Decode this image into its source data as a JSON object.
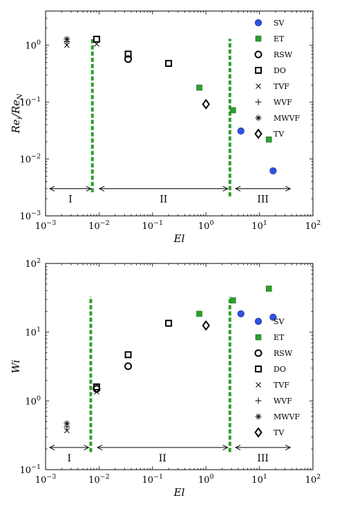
{
  "chart_data": [
    {
      "type": "scatter",
      "xlabel": "El",
      "ylabel": "Re_i/Re_N",
      "xscale": "log",
      "yscale": "log",
      "xlim": [
        0.001,
        100
      ],
      "ylim": [
        0.001,
        4
      ],
      "xticks": [
        {
          "value": 0.001,
          "base": "10",
          "exp": "−3"
        },
        {
          "value": 0.01,
          "base": "10",
          "exp": "−2"
        },
        {
          "value": 0.1,
          "base": "10",
          "exp": "−1"
        },
        {
          "value": 1,
          "base": "10",
          "exp": "0"
        },
        {
          "value": 10,
          "base": "10",
          "exp": "1"
        },
        {
          "value": 100,
          "base": "10",
          "exp": "2"
        }
      ],
      "yticks": [
        {
          "value": 0.001,
          "base": "10",
          "exp": "−3"
        },
        {
          "value": 0.01,
          "base": "10",
          "exp": "−2"
        },
        {
          "value": 0.1,
          "base": "10",
          "exp": "−1"
        },
        {
          "value": 1,
          "base": "10",
          "exp": "0"
        }
      ],
      "legend_position": "right",
      "series": [
        {
          "name": "SV",
          "marker": "filled-circle",
          "color": "#2f52e0",
          "points": [
            [
              4.5,
              0.031
            ],
            [
              18,
              0.0062
            ]
          ]
        },
        {
          "name": "ET",
          "marker": "filled-square",
          "color": "#2ca02c",
          "points": [
            [
              0.75,
              0.18
            ],
            [
              3.2,
              0.072
            ],
            [
              15,
              0.022
            ]
          ]
        },
        {
          "name": "RSW",
          "marker": "open-circle",
          "color": "#000000",
          "points": [
            [
              0.035,
              0.57
            ]
          ]
        },
        {
          "name": "DO",
          "marker": "open-square",
          "color": "#000000",
          "points": [
            [
              0.009,
              1.28
            ],
            [
              0.035,
              0.7
            ],
            [
              0.2,
              0.48
            ]
          ]
        },
        {
          "name": "TVF",
          "marker": "x",
          "color": "#000000",
          "points": [
            [
              0.0025,
              1.0
            ],
            [
              0.009,
              1.05
            ]
          ]
        },
        {
          "name": "WVF",
          "marker": "plus",
          "color": "#000000",
          "points": [
            [
              0.0025,
              1.15
            ]
          ]
        },
        {
          "name": "MWVF",
          "marker": "asterisk",
          "color": "#000000",
          "points": [
            [
              0.0025,
              1.28
            ]
          ]
        },
        {
          "name": "TV",
          "marker": "open-diamond",
          "color": "#000000",
          "points": [
            [
              1.0,
              0.092
            ]
          ]
        }
      ],
      "boundaries": {
        "color": "#2ca02c",
        "x": [
          0.0075,
          2.8
        ],
        "y_range": [
          [
            0.0026,
            1.4
          ],
          [
            0.0022,
            1.3
          ]
        ]
      },
      "regions": [
        {
          "label": "I",
          "x_range": [
            0.001,
            0.0075
          ],
          "arrow_y": 0.003
        },
        {
          "label": "II",
          "x_range": [
            0.0085,
            2.7
          ],
          "arrow_y": 0.003
        },
        {
          "label": "III",
          "x_range": [
            3.0,
            40
          ],
          "arrow_y": 0.003
        }
      ]
    },
    {
      "type": "scatter",
      "xlabel": "El",
      "ylabel": "Wi",
      "xscale": "log",
      "yscale": "log",
      "xlim": [
        0.001,
        100
      ],
      "ylim": [
        0.1,
        100
      ],
      "xticks": [
        {
          "value": 0.001,
          "base": "10",
          "exp": "−3"
        },
        {
          "value": 0.01,
          "base": "10",
          "exp": "−2"
        },
        {
          "value": 0.1,
          "base": "10",
          "exp": "−1"
        },
        {
          "value": 1,
          "base": "10",
          "exp": "0"
        },
        {
          "value": 10,
          "base": "10",
          "exp": "1"
        },
        {
          "value": 100,
          "base": "10",
          "exp": "2"
        }
      ],
      "yticks": [
        {
          "value": 0.1,
          "base": "10",
          "exp": "−1"
        },
        {
          "value": 1,
          "base": "10",
          "exp": "0"
        },
        {
          "value": 10,
          "base": "10",
          "exp": "1"
        },
        {
          "value": 100,
          "base": "10",
          "exp": "2"
        }
      ],
      "legend_position": "right",
      "series": [
        {
          "name": "SV",
          "marker": "filled-circle",
          "color": "#2f52e0",
          "points": [
            [
              4.5,
              18.5
            ],
            [
              18,
              16.5
            ]
          ]
        },
        {
          "name": "ET",
          "marker": "filled-square",
          "color": "#2ca02c",
          "points": [
            [
              0.75,
              18.5
            ],
            [
              3.2,
              29
            ],
            [
              15,
              43
            ]
          ]
        },
        {
          "name": "RSW",
          "marker": "open-circle",
          "color": "#000000",
          "points": [
            [
              0.035,
              3.2
            ],
            [
              0.009,
              1.5
            ]
          ]
        },
        {
          "name": "DO",
          "marker": "open-square",
          "color": "#000000",
          "points": [
            [
              0.009,
              1.6
            ],
            [
              0.035,
              4.7
            ],
            [
              0.2,
              13.5
            ]
          ]
        },
        {
          "name": "TVF",
          "marker": "x",
          "color": "#000000",
          "points": [
            [
              0.0025,
              0.37
            ],
            [
              0.009,
              1.35
            ]
          ]
        },
        {
          "name": "WVF",
          "marker": "plus",
          "color": "#000000",
          "points": [
            [
              0.0025,
              0.42
            ]
          ]
        },
        {
          "name": "MWVF",
          "marker": "asterisk",
          "color": "#000000",
          "points": [
            [
              0.0025,
              0.47
            ]
          ]
        },
        {
          "name": "TV",
          "marker": "open-diamond",
          "color": "#000000",
          "points": [
            [
              1.0,
              12.5
            ]
          ]
        }
      ],
      "boundaries": {
        "color": "#2ca02c",
        "x": [
          0.007,
          2.8
        ],
        "y_range": [
          [
            0.18,
            33
          ],
          [
            0.18,
            33
          ]
        ]
      },
      "regions": [
        {
          "label": "I",
          "x_range": [
            0.001,
            0.0068
          ],
          "arrow_y": 0.21
        },
        {
          "label": "II",
          "x_range": [
            0.0078,
            2.7
          ],
          "arrow_y": 0.21
        },
        {
          "label": "III",
          "x_range": [
            3.0,
            40
          ],
          "arrow_y": 0.21
        }
      ]
    }
  ]
}
